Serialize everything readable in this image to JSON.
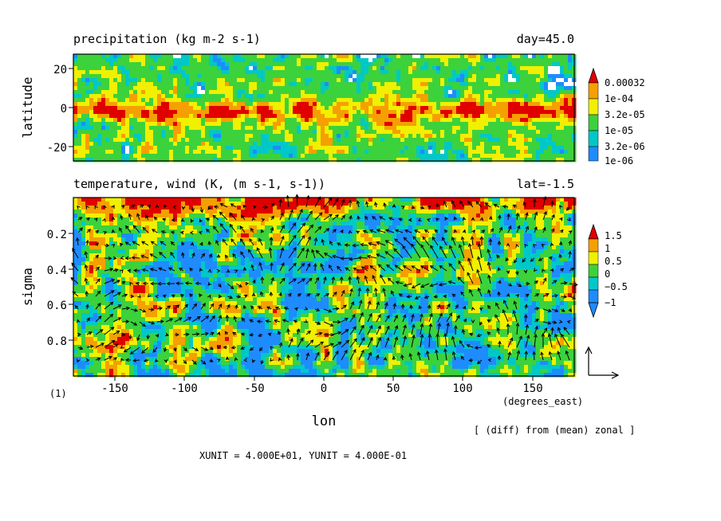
{
  "chart_data": [
    {
      "type": "heatmap",
      "title": "precipitation (kg m-2 s-1)",
      "title_right": "day=45.0",
      "ylabel": "latitude",
      "xlim": [
        -180,
        180
      ],
      "ylim": [
        -30,
        30
      ],
      "y_ticks": [
        20,
        0,
        -20
      ],
      "colorbar": {
        "labels": [
          "0.00032",
          "1e-04",
          "3.2e-05",
          "1e-05",
          "3.2e-06",
          "1e-06"
        ],
        "colors": [
          "#e00000",
          "#f5a000",
          "#f0f000",
          "#3cd23c",
          "#00c8c8",
          "#1e8cff"
        ]
      },
      "colors": {
        "low": "#ffffff",
        "cyan": "#00c8c8",
        "green": "#3cd23c",
        "yellow": "#f0f000",
        "orange": "#f5a000",
        "red": "#e00000",
        "blue": "#1e8cff"
      }
    },
    {
      "type": "heatmap",
      "title": "temperature, wind (K, (m s-1, s-1))",
      "title_right": "lat=-1.5",
      "xlabel": "lon",
      "x_unit_label": "(degrees_east)",
      "ylabel": "sigma",
      "xlim": [
        -180,
        180
      ],
      "ylim": [
        1.0,
        0.0
      ],
      "x_ticks": [
        -150,
        -100,
        -50,
        0,
        50,
        100,
        150
      ],
      "y_ticks": [
        0.2,
        0.4,
        0.6,
        0.8
      ],
      "colorbar": {
        "labels": [
          "1.5",
          "1",
          "0.5",
          "0",
          "−0.5",
          "−1"
        ],
        "colors": [
          "#e00000",
          "#f5a000",
          "#f0f000",
          "#3cd23c",
          "#00c8c8",
          "#1e8cff"
        ]
      },
      "vectors": "wind (m s-1, s-1)",
      "unit_arrow": "reference vector"
    }
  ],
  "footnote_left": "(1)",
  "annotation": "[ (diff) from (mean) zonal ]",
  "units_text": "XUNIT = 4.000E+01, YUNIT = 4.000E-01"
}
